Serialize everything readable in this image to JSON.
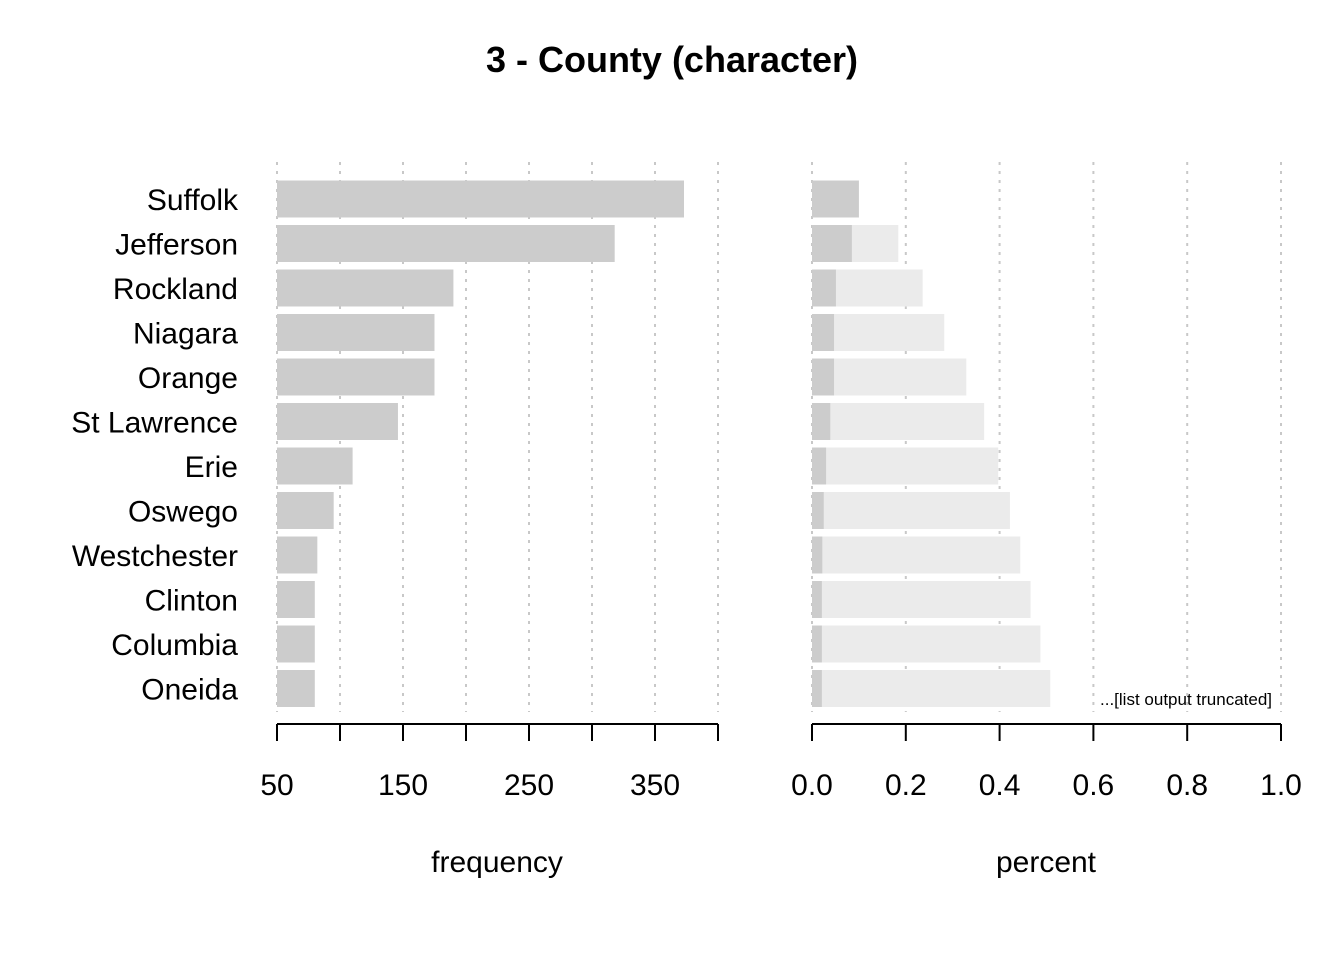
{
  "chart_data": {
    "title": "3 - County (character)",
    "categories": [
      "Suffolk",
      "Jefferson",
      "Rockland",
      "Niagara",
      "Orange",
      "St Lawrence",
      "Erie",
      "Oswego",
      "Westchester",
      "Clinton",
      "Columbia",
      "Oneida"
    ],
    "frequency_panel": {
      "type": "bar",
      "xlabel": "frequency",
      "xlim": [
        50,
        400
      ],
      "ticks": [
        50,
        100,
        150,
        200,
        250,
        300,
        350,
        400
      ],
      "tick_labels": [
        "50",
        "150",
        "250",
        "350"
      ],
      "tick_label_values": [
        50,
        150,
        250,
        350
      ],
      "values": [
        373,
        318,
        190,
        175,
        175,
        146,
        110,
        95,
        82,
        80,
        80,
        80
      ],
      "bar_color": "#cccccc"
    },
    "percent_panel": {
      "type": "bar",
      "xlabel": "percent",
      "xlim": [
        0,
        1
      ],
      "ticks": [
        0,
        0.2,
        0.4,
        0.6,
        0.8,
        1.0
      ],
      "tick_labels": [
        "0.0",
        "0.2",
        "0.4",
        "0.6",
        "0.8",
        "1.0"
      ],
      "tick_label_values": [
        0,
        0.2,
        0.4,
        0.6,
        0.8,
        1.0
      ],
      "values": [
        0.1,
        0.085,
        0.051,
        0.047,
        0.047,
        0.039,
        0.03,
        0.025,
        0.022,
        0.021,
        0.021,
        0.021
      ],
      "cumulative": [
        0.1,
        0.184,
        0.236,
        0.282,
        0.329,
        0.367,
        0.397,
        0.422,
        0.444,
        0.466,
        0.487,
        0.508
      ],
      "bar_color": "#cccccc",
      "cumulative_color": "#ebebeb"
    },
    "grid": true,
    "note": "...[list output truncated]"
  }
}
